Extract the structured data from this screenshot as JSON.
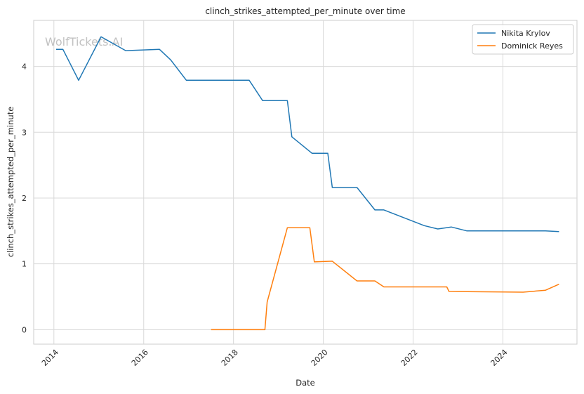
{
  "chart_data": {
    "type": "line",
    "title": "clinch_strikes_attempted_per_minute over time",
    "xlabel": "Date",
    "ylabel": "clinch_strikes_attempted_per_minute",
    "watermark": "WolfTickets.AI",
    "xlim": [
      2013.55,
      2025.65
    ],
    "ylim": [
      -0.22,
      4.7
    ],
    "x_ticks": [
      2014,
      2016,
      2018,
      2020,
      2022,
      2024
    ],
    "x_tick_labels": [
      "2014",
      "2016",
      "2018",
      "2020",
      "2022",
      "2024"
    ],
    "y_ticks": [
      0,
      1,
      2,
      3,
      4
    ],
    "y_tick_labels": [
      "0",
      "1",
      "2",
      "3",
      "4"
    ],
    "grid": true,
    "legend_position": "top-right",
    "series": [
      {
        "name": "Nikita Krylov",
        "color": "#1f77b4",
        "points": [
          [
            2014.05,
            4.26
          ],
          [
            2014.2,
            4.26
          ],
          [
            2014.55,
            3.79
          ],
          [
            2015.05,
            4.45
          ],
          [
            2015.6,
            4.24
          ],
          [
            2016.35,
            4.26
          ],
          [
            2016.6,
            4.1
          ],
          [
            2016.95,
            3.79
          ],
          [
            2018.35,
            3.79
          ],
          [
            2018.65,
            3.48
          ],
          [
            2019.2,
            3.48
          ],
          [
            2019.3,
            2.93
          ],
          [
            2019.75,
            2.68
          ],
          [
            2020.1,
            2.68
          ],
          [
            2020.2,
            2.16
          ],
          [
            2020.75,
            2.16
          ],
          [
            2021.15,
            1.82
          ],
          [
            2021.35,
            1.82
          ],
          [
            2022.25,
            1.58
          ],
          [
            2022.55,
            1.53
          ],
          [
            2022.85,
            1.56
          ],
          [
            2023.2,
            1.5
          ],
          [
            2024.95,
            1.5
          ],
          [
            2025.25,
            1.49
          ]
        ]
      },
      {
        "name": "Dominick Reyes",
        "color": "#ff7f0e",
        "points": [
          [
            2017.5,
            0.0
          ],
          [
            2018.7,
            0.0
          ],
          [
            2018.75,
            0.42
          ],
          [
            2019.2,
            1.55
          ],
          [
            2019.7,
            1.55
          ],
          [
            2019.8,
            1.03
          ],
          [
            2020.2,
            1.04
          ],
          [
            2020.75,
            0.74
          ],
          [
            2021.15,
            0.74
          ],
          [
            2021.35,
            0.65
          ],
          [
            2022.75,
            0.65
          ],
          [
            2022.8,
            0.58
          ],
          [
            2024.45,
            0.57
          ],
          [
            2024.95,
            0.6
          ],
          [
            2025.25,
            0.69
          ]
        ]
      }
    ]
  }
}
